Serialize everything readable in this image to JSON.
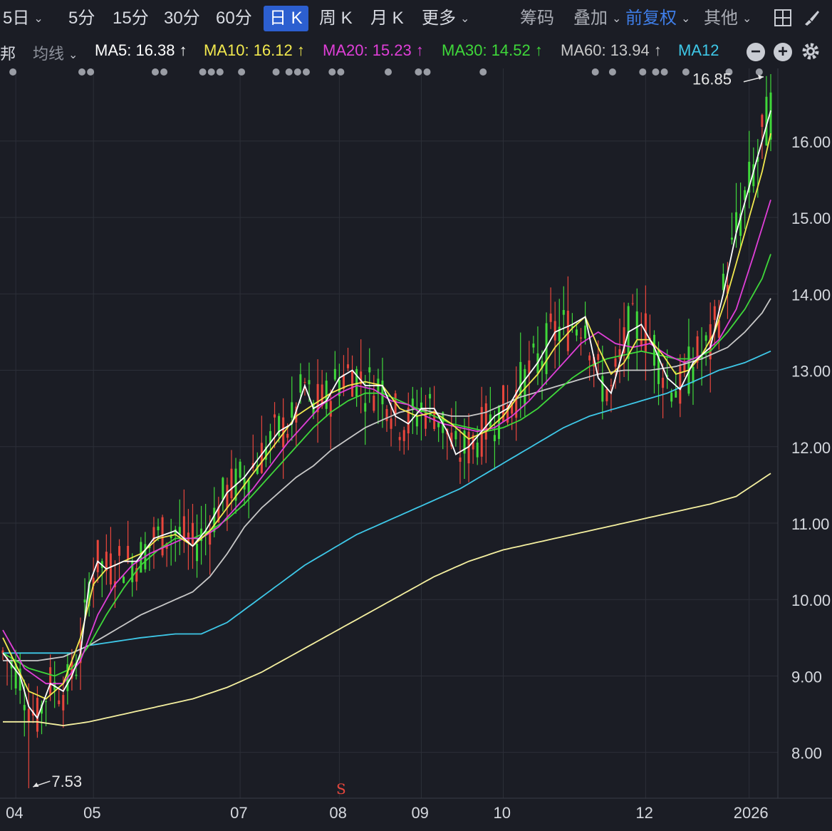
{
  "toolbar": {
    "periods": [
      "5日",
      "5分",
      "15分",
      "30分",
      "60分",
      "日 K",
      "周 K",
      "月 K",
      "更多"
    ],
    "active_period": "日 K",
    "right_items": [
      "筹码",
      "叠加",
      "前复权",
      "其他"
    ]
  },
  "ma_bar": {
    "prefix": "邦",
    "selector": "均线",
    "items": [
      {
        "text": "MA5: 16.38 ↑",
        "color": "#ffffff"
      },
      {
        "text": "MA10: 16.12 ↑",
        "color": "#f2e94e"
      },
      {
        "text": "MA20: 15.23 ↑",
        "color": "#e03fd8"
      },
      {
        "text": "MA30: 14.52 ↑",
        "color": "#3fd83a"
      },
      {
        "text": "MA60: 13.94 ↑",
        "color": "#c8c8c8"
      },
      {
        "text": "MA12",
        "color": "#3ec8e8"
      }
    ]
  },
  "chart_data": {
    "type": "candlestick",
    "ylim": [
      7.4,
      16.95
    ],
    "y_ticks": [
      "16.00",
      "15.00",
      "14.00",
      "13.00",
      "12.00",
      "11.00",
      "10.00",
      "9.00",
      "8.00"
    ],
    "x_ticks": [
      "04",
      "05",
      "07",
      "08",
      "09",
      "10",
      "12",
      "2026"
    ],
    "annotations": {
      "high_label": "16.85",
      "low_label": "7.53",
      "signal": "S"
    },
    "colors": {
      "up": "#e8463c",
      "down": "#3fd83a",
      "ma5": "#ffffff",
      "ma10": "#f2e94e",
      "ma20": "#e03fd8",
      "ma30": "#3fd83a",
      "ma60": "#c8c8c8",
      "ma120": "#3ec8e8",
      "ma250": "#f5f0a0",
      "grid": "#2c2f38"
    },
    "ma_series": {
      "ma5": [
        [
          0,
          9.3
        ],
        [
          4,
          9.0
        ],
        [
          6,
          8.6
        ],
        [
          8,
          8.45
        ],
        [
          11,
          8.9
        ],
        [
          14,
          8.8
        ],
        [
          16,
          9.0
        ],
        [
          18,
          9.3
        ],
        [
          20,
          10.2
        ],
        [
          22,
          10.5
        ],
        [
          24,
          10.4
        ],
        [
          28,
          10.5
        ],
        [
          31,
          10.5
        ],
        [
          35,
          10.8
        ],
        [
          40,
          10.9
        ],
        [
          44,
          10.7
        ],
        [
          47,
          10.9
        ],
        [
          52,
          11.4
        ],
        [
          56,
          11.6
        ],
        [
          60,
          11.9
        ],
        [
          64,
          12.2
        ],
        [
          67,
          12.3
        ],
        [
          70,
          12.8
        ],
        [
          72,
          12.5
        ],
        [
          75,
          12.6
        ],
        [
          78,
          12.9
        ],
        [
          81,
          13.0
        ],
        [
          84,
          12.8
        ],
        [
          88,
          12.8
        ],
        [
          91,
          12.4
        ],
        [
          94,
          12.3
        ],
        [
          97,
          12.5
        ],
        [
          100,
          12.5
        ],
        [
          103,
          12.2
        ],
        [
          105,
          11.9
        ],
        [
          108,
          12.0
        ],
        [
          111,
          12.2
        ],
        [
          114,
          12.4
        ],
        [
          117,
          12.5
        ],
        [
          120,
          12.8
        ],
        [
          124,
          13.1
        ],
        [
          128,
          13.5
        ],
        [
          132,
          13.6
        ],
        [
          135,
          13.7
        ],
        [
          138,
          12.9
        ],
        [
          141,
          12.7
        ],
        [
          145,
          13.5
        ],
        [
          148,
          13.6
        ],
        [
          151,
          13.3
        ],
        [
          154,
          12.9
        ],
        [
          157,
          12.75
        ],
        [
          160,
          13.1
        ],
        [
          164,
          13.3
        ],
        [
          167,
          14.0
        ],
        [
          170,
          14.8
        ],
        [
          173,
          15.4
        ],
        [
          176,
          16.0
        ],
        [
          178,
          16.4
        ]
      ],
      "ma10": [
        [
          0,
          9.5
        ],
        [
          6,
          8.8
        ],
        [
          10,
          8.7
        ],
        [
          14,
          8.9
        ],
        [
          18,
          9.5
        ],
        [
          21,
          10.2
        ],
        [
          24,
          10.4
        ],
        [
          28,
          10.5
        ],
        [
          32,
          10.6
        ],
        [
          36,
          10.8
        ],
        [
          40,
          10.85
        ],
        [
          44,
          10.7
        ],
        [
          48,
          10.9
        ],
        [
          52,
          11.2
        ],
        [
          56,
          11.5
        ],
        [
          60,
          11.8
        ],
        [
          64,
          12.1
        ],
        [
          68,
          12.4
        ],
        [
          72,
          12.55
        ],
        [
          76,
          12.7
        ],
        [
          80,
          12.8
        ],
        [
          84,
          12.85
        ],
        [
          88,
          12.8
        ],
        [
          92,
          12.5
        ],
        [
          96,
          12.4
        ],
        [
          100,
          12.45
        ],
        [
          104,
          12.3
        ],
        [
          108,
          12.1
        ],
        [
          112,
          12.2
        ],
        [
          116,
          12.4
        ],
        [
          120,
          12.7
        ],
        [
          124,
          12.95
        ],
        [
          128,
          13.3
        ],
        [
          132,
          13.55
        ],
        [
          135,
          13.7
        ],
        [
          138,
          13.3
        ],
        [
          141,
          12.95
        ],
        [
          144,
          13.1
        ],
        [
          147,
          13.4
        ],
        [
          150,
          13.4
        ],
        [
          153,
          13.2
        ],
        [
          156,
          12.95
        ],
        [
          159,
          13.0
        ],
        [
          162,
          13.2
        ],
        [
          165,
          13.5
        ],
        [
          168,
          14.0
        ],
        [
          172,
          14.8
        ],
        [
          176,
          15.6
        ],
        [
          178,
          16.1
        ]
      ],
      "ma20": [
        [
          0,
          9.6
        ],
        [
          5,
          9.1
        ],
        [
          10,
          8.9
        ],
        [
          14,
          8.9
        ],
        [
          18,
          9.2
        ],
        [
          22,
          9.8
        ],
        [
          26,
          10.2
        ],
        [
          30,
          10.45
        ],
        [
          34,
          10.6
        ],
        [
          38,
          10.7
        ],
        [
          42,
          10.8
        ],
        [
          46,
          10.8
        ],
        [
          50,
          10.95
        ],
        [
          54,
          11.2
        ],
        [
          58,
          11.45
        ],
        [
          62,
          11.75
        ],
        [
          66,
          12.05
        ],
        [
          70,
          12.3
        ],
        [
          74,
          12.55
        ],
        [
          78,
          12.7
        ],
        [
          82,
          12.8
        ],
        [
          86,
          12.75
        ],
        [
          90,
          12.6
        ],
        [
          94,
          12.55
        ],
        [
          98,
          12.4
        ],
        [
          102,
          12.3
        ],
        [
          106,
          12.25
        ],
        [
          110,
          12.2
        ],
        [
          114,
          12.25
        ],
        [
          118,
          12.4
        ],
        [
          122,
          12.6
        ],
        [
          126,
          12.85
        ],
        [
          130,
          13.1
        ],
        [
          134,
          13.35
        ],
        [
          138,
          13.5
        ],
        [
          142,
          13.35
        ],
        [
          146,
          13.3
        ],
        [
          150,
          13.35
        ],
        [
          154,
          13.2
        ],
        [
          158,
          13.1
        ],
        [
          162,
          13.2
        ],
        [
          166,
          13.4
        ],
        [
          170,
          13.8
        ],
        [
          174,
          14.5
        ],
        [
          178,
          15.23
        ]
      ],
      "ma30": [
        [
          0,
          9.3
        ],
        [
          6,
          9.1
        ],
        [
          12,
          9.0
        ],
        [
          16,
          9.1
        ],
        [
          20,
          9.4
        ],
        [
          24,
          9.8
        ],
        [
          28,
          10.15
        ],
        [
          32,
          10.45
        ],
        [
          36,
          10.65
        ],
        [
          40,
          10.8
        ],
        [
          44,
          10.8
        ],
        [
          48,
          10.9
        ],
        [
          52,
          11.05
        ],
        [
          56,
          11.25
        ],
        [
          60,
          11.5
        ],
        [
          64,
          11.75
        ],
        [
          68,
          12.0
        ],
        [
          72,
          12.25
        ],
        [
          76,
          12.45
        ],
        [
          80,
          12.6
        ],
        [
          84,
          12.7
        ],
        [
          88,
          12.7
        ],
        [
          92,
          12.6
        ],
        [
          96,
          12.5
        ],
        [
          100,
          12.4
        ],
        [
          104,
          12.3
        ],
        [
          108,
          12.25
        ],
        [
          112,
          12.2
        ],
        [
          116,
          12.25
        ],
        [
          120,
          12.35
        ],
        [
          124,
          12.5
        ],
        [
          128,
          12.7
        ],
        [
          132,
          12.9
        ],
        [
          136,
          13.05
        ],
        [
          140,
          13.15
        ],
        [
          144,
          13.2
        ],
        [
          148,
          13.25
        ],
        [
          152,
          13.2
        ],
        [
          156,
          13.15
        ],
        [
          160,
          13.15
        ],
        [
          164,
          13.25
        ],
        [
          168,
          13.5
        ],
        [
          172,
          13.8
        ],
        [
          176,
          14.2
        ],
        [
          178,
          14.52
        ]
      ],
      "ma60": [
        [
          0,
          9.2
        ],
        [
          8,
          9.2
        ],
        [
          14,
          9.25
        ],
        [
          20,
          9.4
        ],
        [
          26,
          9.6
        ],
        [
          32,
          9.8
        ],
        [
          38,
          9.95
        ],
        [
          44,
          10.1
        ],
        [
          48,
          10.3
        ],
        [
          52,
          10.6
        ],
        [
          56,
          10.95
        ],
        [
          60,
          11.2
        ],
        [
          64,
          11.4
        ],
        [
          68,
          11.6
        ],
        [
          72,
          11.75
        ],
        [
          76,
          11.95
        ],
        [
          80,
          12.1
        ],
        [
          84,
          12.25
        ],
        [
          88,
          12.35
        ],
        [
          92,
          12.45
        ],
        [
          96,
          12.5
        ],
        [
          100,
          12.45
        ],
        [
          104,
          12.4
        ],
        [
          108,
          12.4
        ],
        [
          112,
          12.45
        ],
        [
          116,
          12.55
        ],
        [
          120,
          12.65
        ],
        [
          126,
          12.75
        ],
        [
          132,
          12.85
        ],
        [
          138,
          12.95
        ],
        [
          144,
          13.0
        ],
        [
          150,
          13.0
        ],
        [
          156,
          13.05
        ],
        [
          162,
          13.15
        ],
        [
          168,
          13.3
        ],
        [
          172,
          13.5
        ],
        [
          176,
          13.75
        ],
        [
          178,
          13.94
        ]
      ],
      "ma120": [
        [
          0,
          9.3
        ],
        [
          10,
          9.3
        ],
        [
          16,
          9.3
        ],
        [
          20,
          9.4
        ],
        [
          26,
          9.45
        ],
        [
          32,
          9.5
        ],
        [
          40,
          9.55
        ],
        [
          46,
          9.55
        ],
        [
          52,
          9.7
        ],
        [
          58,
          9.95
        ],
        [
          64,
          10.2
        ],
        [
          70,
          10.45
        ],
        [
          76,
          10.65
        ],
        [
          82,
          10.85
        ],
        [
          88,
          11.0
        ],
        [
          94,
          11.15
        ],
        [
          100,
          11.3
        ],
        [
          106,
          11.45
        ],
        [
          112,
          11.65
        ],
        [
          118,
          11.85
        ],
        [
          124,
          12.05
        ],
        [
          130,
          12.25
        ],
        [
          136,
          12.4
        ],
        [
          142,
          12.5
        ],
        [
          148,
          12.6
        ],
        [
          154,
          12.7
        ],
        [
          160,
          12.85
        ],
        [
          166,
          13.0
        ],
        [
          172,
          13.1
        ],
        [
          178,
          13.25
        ]
      ],
      "ma250": [
        [
          0,
          8.4
        ],
        [
          8,
          8.4
        ],
        [
          14,
          8.35
        ],
        [
          20,
          8.4
        ],
        [
          28,
          8.5
        ],
        [
          36,
          8.6
        ],
        [
          44,
          8.7
        ],
        [
          52,
          8.85
        ],
        [
          60,
          9.05
        ],
        [
          68,
          9.3
        ],
        [
          76,
          9.55
        ],
        [
          84,
          9.8
        ],
        [
          92,
          10.05
        ],
        [
          100,
          10.3
        ],
        [
          108,
          10.5
        ],
        [
          116,
          10.65
        ],
        [
          124,
          10.75
        ],
        [
          132,
          10.85
        ],
        [
          140,
          10.95
        ],
        [
          148,
          11.05
        ],
        [
          156,
          11.15
        ],
        [
          164,
          11.25
        ],
        [
          170,
          11.35
        ],
        [
          178,
          11.65
        ]
      ]
    }
  }
}
